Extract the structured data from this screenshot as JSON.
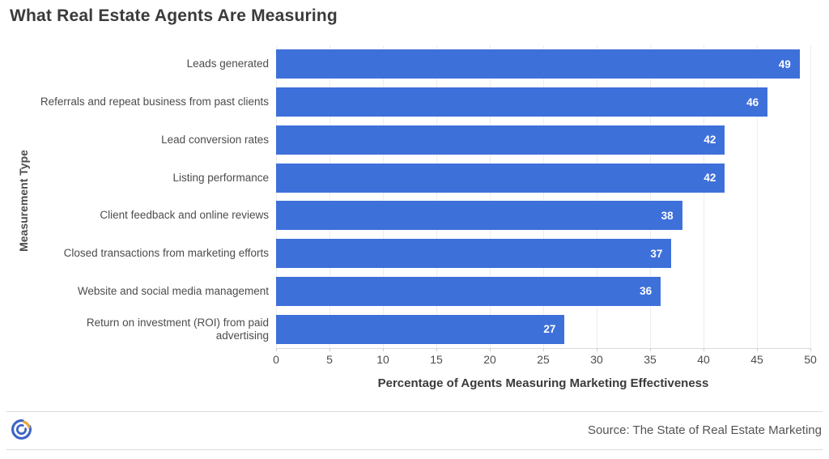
{
  "title": "What Real Estate Agents Are Measuring",
  "chart_data": {
    "type": "bar",
    "orientation": "horizontal",
    "categories": [
      "Leads generated",
      "Referrals and repeat business from past clients",
      "Lead conversion rates",
      "Listing performance",
      "Client feedback and online reviews",
      "Closed transactions from marketing efforts",
      "Website and social media management",
      "Return on investment (ROI) from paid advertising"
    ],
    "values": [
      49,
      46,
      42,
      42,
      38,
      37,
      36,
      27
    ],
    "title": "What Real Estate Agents Are Measuring",
    "xlabel": "Percentage of Agents Measuring Marketing Effectiveness",
    "ylabel": "Measurement Type",
    "xlim": [
      0,
      50
    ],
    "xticks": [
      0,
      5,
      10,
      15,
      20,
      25,
      30,
      35,
      40,
      45,
      50
    ],
    "grid": true,
    "legend": "none",
    "bar_color": "#3e70da",
    "value_label_color": "#ffffff"
  },
  "footer": {
    "source": "Source: The State of Real Estate Marketing",
    "logo": "concentric-circles-logo",
    "logo_colors": {
      "blue": "#3c63c6",
      "orange": "#e9a43c"
    }
  }
}
